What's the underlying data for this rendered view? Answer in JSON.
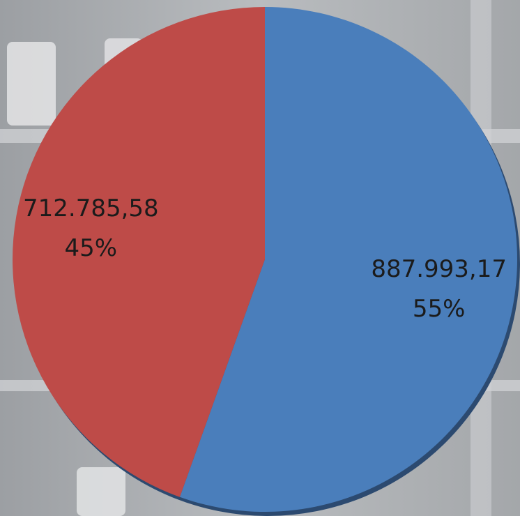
{
  "chart_data": {
    "type": "pie",
    "values": [
      887993.17,
      712785.58
    ],
    "value_labels": [
      "887.993,17",
      "712.785,58"
    ],
    "percent_labels": [
      "55%",
      "45%"
    ],
    "colors": [
      "#4a7ebb",
      "#be4b48"
    ]
  }
}
